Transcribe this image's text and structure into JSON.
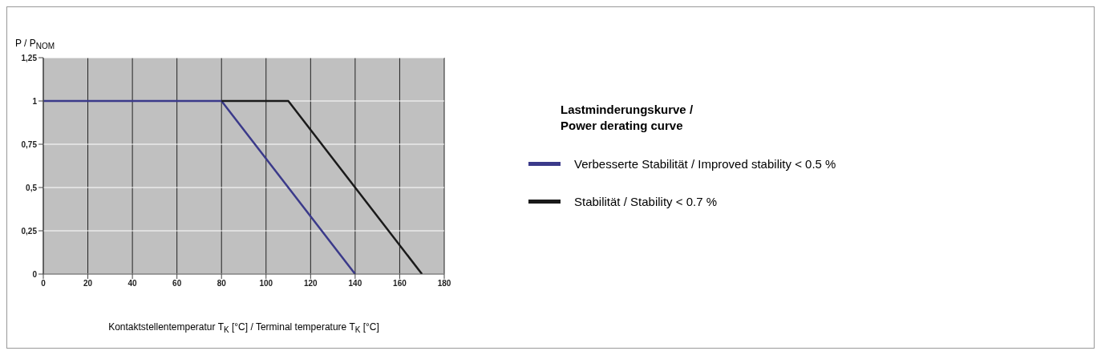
{
  "chart_data": {
    "type": "line",
    "title": "Lastminderungskurve /\nPower derating curve",
    "xlabel": "Kontaktstellentemperatur T$_{K}$ [°C] / Terminal temperature T$_{K}$ [°C]",
    "ylabel": "P / P$_{NOM}$",
    "series": [
      {
        "name": "Verbesserte Stabilität / Improved stability < 0.5 %",
        "color": "#3b3a8a",
        "x": [
          0,
          80,
          140
        ],
        "values": [
          1,
          1,
          0
        ]
      },
      {
        "name": "Stabilität / Stability < 0.7 %",
        "color": "#1a1a1a",
        "x": [
          80,
          110,
          170
        ],
        "values": [
          1,
          1,
          0
        ]
      }
    ],
    "xlim": [
      0,
      180
    ],
    "xticks": [
      0,
      20,
      40,
      60,
      80,
      100,
      120,
      140,
      160,
      180
    ],
    "ylim": [
      0,
      1.25
    ],
    "yticks": [
      0,
      {
        "value": 0.25,
        "label": "0,25"
      },
      {
        "value": 0.5,
        "label": "0,5"
      },
      {
        "value": 0.75,
        "label": "0,75"
      },
      1,
      {
        "value": 1.25,
        "label": "1,25"
      }
    ],
    "grid": true,
    "legend": "right",
    "marker": "none",
    "line_style": "solid"
  }
}
